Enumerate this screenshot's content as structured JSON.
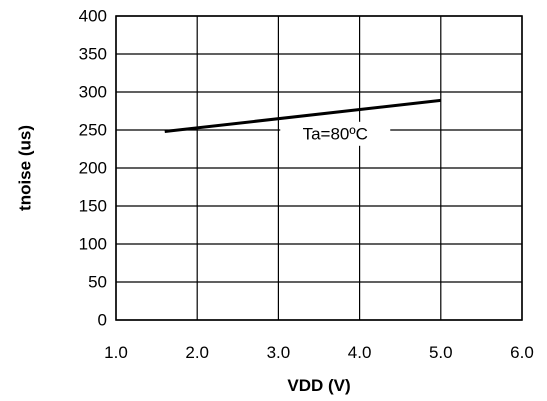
{
  "chart_data": {
    "type": "line",
    "title": "",
    "xlabel": "VDD (V)",
    "ylabel": "tnoise (us)",
    "xlim": [
      1.0,
      6.0
    ],
    "ylim": [
      0,
      400
    ],
    "grid": true,
    "x_ticks": [
      1.0,
      2.0,
      3.0,
      4.0,
      5.0,
      6.0
    ],
    "x_tick_labels": [
      "1.0",
      "2.0",
      "3.0",
      "4.0",
      "5.0",
      "6.0"
    ],
    "y_ticks": [
      0,
      50,
      100,
      150,
      200,
      250,
      300,
      350,
      400
    ],
    "y_tick_labels": [
      "0",
      "50",
      "100",
      "150",
      "200",
      "250",
      "300",
      "350",
      "400"
    ],
    "series": [
      {
        "name": "Ta=80°C",
        "x": [
          1.6,
          5.0
        ],
        "y": [
          248,
          289
        ]
      }
    ],
    "annotations": [
      {
        "text": "Ta=80ºC",
        "series": 0
      }
    ],
    "colors": {
      "line": "#000000",
      "grid": "#000000",
      "background": "#ffffff"
    }
  }
}
